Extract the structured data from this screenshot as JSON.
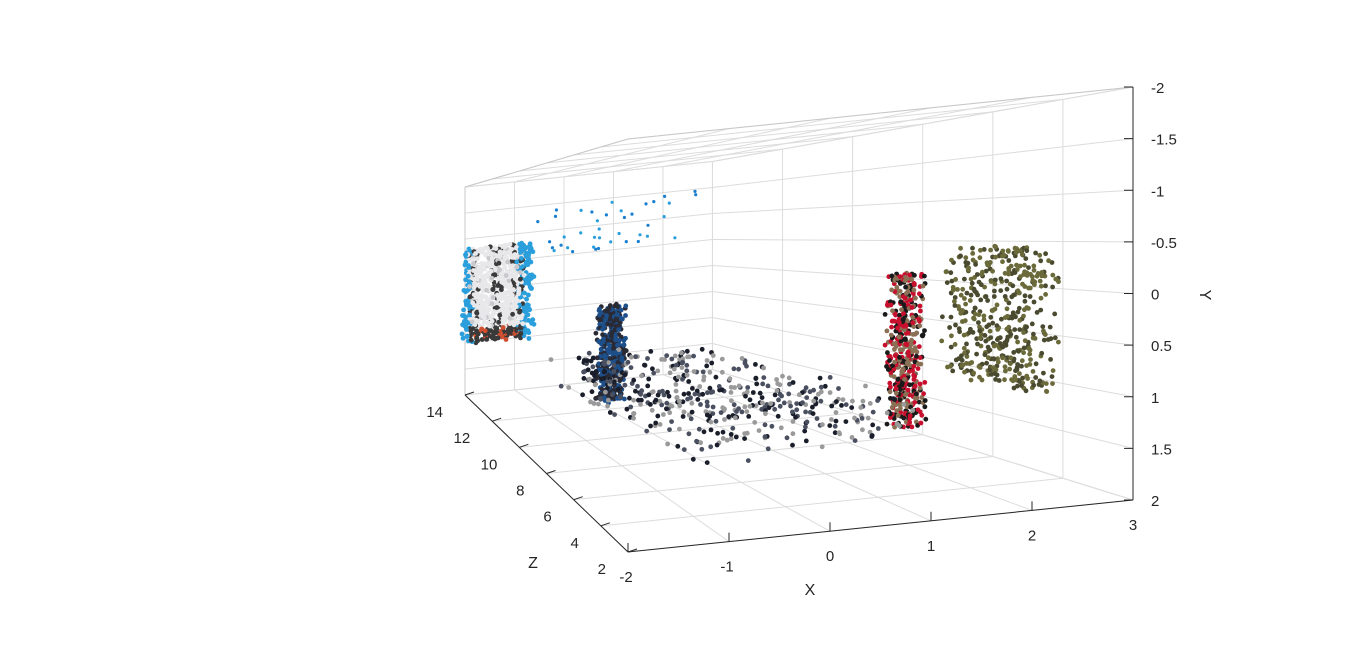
{
  "chart_data": {
    "type": "scatter",
    "subtype": "3d-point-cloud",
    "title": "",
    "xlabel": "X",
    "ylabel": "Y",
    "zlabel": "Z",
    "xlim": [
      -2,
      3
    ],
    "ylim": [
      -2,
      2
    ],
    "zlim": [
      2,
      14
    ],
    "y_direction": "reversed",
    "grid": true,
    "x_ticks": [
      "-2",
      "-1",
      "0",
      "1",
      "2",
      "3"
    ],
    "y_ticks": [
      "-2",
      "-1.5",
      "-1",
      "-0.5",
      "0",
      "0.5",
      "1",
      "1.5",
      "2"
    ],
    "z_ticks": [
      "2",
      "4",
      "6",
      "8",
      "10",
      "12",
      "14"
    ],
    "scene_objects": [
      {
        "object": "truck-rear",
        "x_range": [
          -2.0,
          -0.7
        ],
        "y_range": [
          -0.8,
          1.0
        ],
        "z": 14,
        "colors": [
          "#e8e8ea",
          "#2a9fdc",
          "#3a3a3a",
          "#d05030"
        ]
      },
      {
        "object": "sky-points",
        "x_range": [
          -0.5,
          2.8
        ],
        "y_range": [
          -1.5,
          -0.5
        ],
        "z": 14,
        "colors": [
          "#1a7fd0",
          "#2a9fdc"
        ]
      },
      {
        "object": "rider-left",
        "x": -0.9,
        "y_range": [
          0.0,
          1.3
        ],
        "z": 9,
        "colors": [
          "#1d4f8a",
          "#2a2a35"
        ]
      },
      {
        "object": "motorcycle-right",
        "x": 1.6,
        "y_range": [
          -0.3,
          1.4
        ],
        "z": 5,
        "colors": [
          "#1a1a1a",
          "#c8102e",
          "#8a7055"
        ]
      },
      {
        "object": "road-surface",
        "x_range": [
          -1.0,
          1.5
        ],
        "y_range": [
          1.0,
          1.5
        ],
        "z_range": [
          4,
          12
        ],
        "colors": [
          "#9a9a9a",
          "#4a5060",
          "#1a1e2a"
        ]
      },
      {
        "object": "foliage-points",
        "x": 2.5,
        "y_range": [
          -0.5,
          1.0
        ],
        "z_range": [
          3,
          6
        ],
        "colors": [
          "#6b6a3a",
          "#4a4a30"
        ]
      }
    ]
  }
}
